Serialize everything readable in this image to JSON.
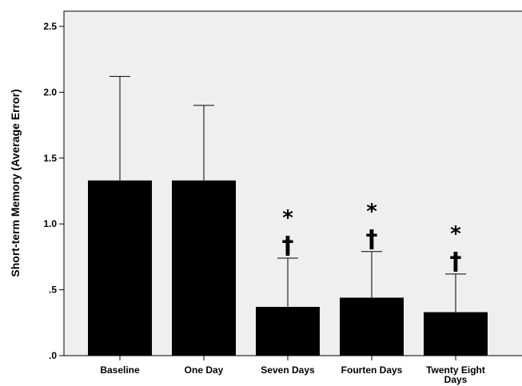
{
  "chart_data": {
    "type": "bar",
    "categories": [
      "Baseline",
      "One Day",
      "Seven Days",
      "Fourten Days",
      "Twenty Eight Days"
    ],
    "category_label_lines": [
      [
        "Baseline"
      ],
      [
        "One Day"
      ],
      [
        "Seven Days"
      ],
      [
        "Fourten Days"
      ],
      [
        "Twenty Eight",
        "Days"
      ]
    ],
    "values": [
      1.33,
      1.33,
      0.37,
      0.44,
      0.33
    ],
    "error_upper": [
      2.12,
      1.9,
      0.74,
      0.79,
      0.62
    ],
    "annotations": [
      {
        "category_index": 2,
        "symbols": [
          "*",
          "†"
        ]
      },
      {
        "category_index": 3,
        "symbols": [
          "*",
          "†"
        ]
      },
      {
        "category_index": 4,
        "symbols": [
          "*",
          "†"
        ]
      }
    ],
    "ylabel": "Short-term Memory (Average Error)",
    "xlabel": "",
    "ylim": [
      0,
      2.5
    ],
    "yticks": [
      0,
      0.5,
      1.0,
      1.5,
      2.0,
      2.5
    ],
    "ytick_labels": [
      ".0",
      ".5",
      "1.0",
      "1.5",
      "2.0",
      "2.5"
    ],
    "grid": false,
    "colors": {
      "bar": "#000000",
      "plot_background": "#efefef",
      "axis": "#000000",
      "error_bar": "#000000"
    }
  }
}
